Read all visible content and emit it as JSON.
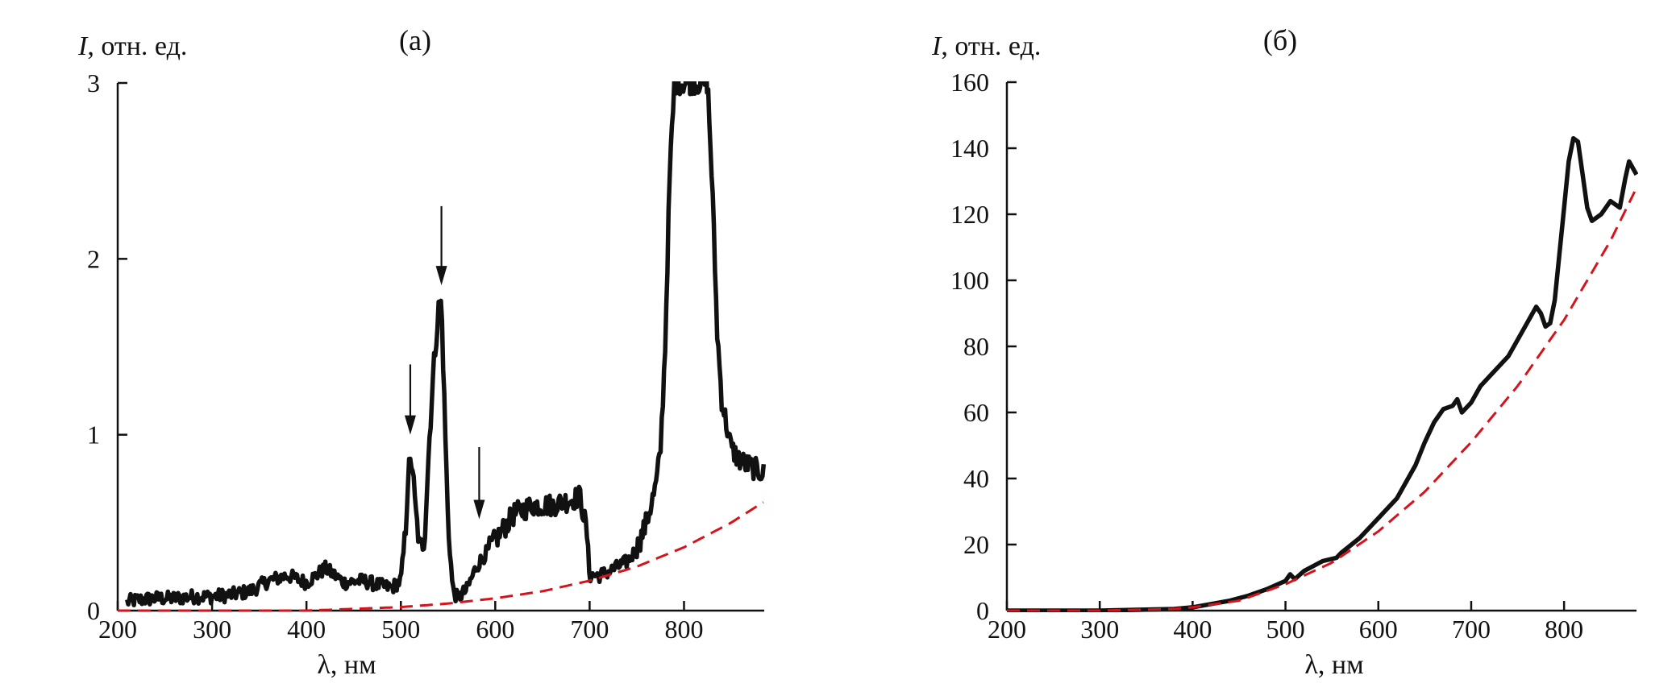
{
  "colors": {
    "measured": "#111111",
    "fit": "#d4141c",
    "axis": "#111111"
  },
  "chart_data": [
    {
      "type": "line",
      "panel_label": "(а)",
      "ylabel_italic": "I",
      "ylabel_rest": ", отн. ед.",
      "xlabel": "λ, нм",
      "xlim": [
        200,
        885
      ],
      "ylim": [
        0,
        3
      ],
      "xticks": [
        200,
        300,
        400,
        500,
        600,
        700,
        800
      ],
      "yticks": [
        0,
        1,
        2,
        3
      ],
      "grid": false,
      "series": [
        {
          "style": "solid-noisy",
          "x": [
            210,
            220,
            240,
            260,
            280,
            300,
            320,
            340,
            350,
            360,
            380,
            400,
            420,
            440,
            460,
            480,
            490,
            500,
            505,
            508,
            512,
            515,
            520,
            525,
            530,
            535,
            540,
            543,
            546,
            550,
            555,
            560,
            570,
            580,
            600,
            620,
            640,
            660,
            680,
            690,
            697,
            700,
            710,
            720,
            740,
            750,
            760,
            770,
            775,
            780,
            785,
            790,
            795,
            800,
            805,
            810,
            815,
            820,
            825,
            830,
            835,
            840,
            850,
            860,
            870,
            885
          ],
          "y": [
            0.05,
            0.06,
            0.07,
            0.07,
            0.08,
            0.08,
            0.09,
            0.11,
            0.14,
            0.17,
            0.2,
            0.16,
            0.24,
            0.16,
            0.17,
            0.14,
            0.13,
            0.17,
            0.45,
            0.8,
            0.85,
            0.6,
            0.35,
            0.4,
            0.95,
            1.4,
            1.72,
            1.75,
            1.2,
            0.5,
            0.12,
            0.07,
            0.12,
            0.25,
            0.4,
            0.55,
            0.6,
            0.6,
            0.63,
            0.65,
            0.45,
            0.2,
            0.2,
            0.22,
            0.28,
            0.35,
            0.5,
            0.7,
            0.9,
            1.5,
            2.5,
            3.0,
            3.0,
            3.0,
            3.0,
            3.0,
            3.0,
            3.0,
            3.0,
            2.4,
            1.6,
            1.2,
            0.92,
            0.85,
            0.82,
            0.78
          ],
          "noise": 0.04
        },
        {
          "style": "dashed",
          "x": [
            200,
            300,
            400,
            450,
            500,
            550,
            600,
            650,
            700,
            750,
            800,
            850,
            885
          ],
          "y": [
            0,
            0,
            0.0,
            0.01,
            0.02,
            0.04,
            0.07,
            0.11,
            0.17,
            0.25,
            0.36,
            0.5,
            0.62
          ]
        }
      ],
      "annotations": [
        {
          "type": "arrow",
          "x": 510,
          "y_from": 1.4,
          "y_to": 1.0
        },
        {
          "type": "arrow",
          "x": 543,
          "y_from": 2.3,
          "y_to": 1.85
        },
        {
          "type": "arrow",
          "x": 583,
          "y_from": 0.93,
          "y_to": 0.52
        }
      ]
    },
    {
      "type": "line",
      "panel_label": "(б)",
      "ylabel_italic": "I",
      "ylabel_rest": ", отн. ед.",
      "xlabel": "λ, нм",
      "xlim": [
        200,
        878
      ],
      "ylim": [
        0,
        160
      ],
      "xticks": [
        200,
        300,
        400,
        500,
        600,
        700,
        800
      ],
      "yticks": [
        0,
        20,
        40,
        60,
        80,
        100,
        120,
        140,
        160
      ],
      "grid": false,
      "series": [
        {
          "style": "solid",
          "x": [
            200,
            300,
            380,
            400,
            420,
            440,
            460,
            480,
            500,
            505,
            510,
            520,
            540,
            555,
            560,
            580,
            600,
            620,
            640,
            650,
            660,
            670,
            680,
            685,
            690,
            700,
            710,
            720,
            740,
            760,
            770,
            775,
            780,
            785,
            790,
            795,
            800,
            805,
            810,
            815,
            820,
            825,
            830,
            840,
            850,
            860,
            866,
            870,
            878
          ],
          "y": [
            0,
            0,
            0.5,
            1,
            2,
            3,
            4.5,
            6.5,
            9,
            11,
            9.5,
            12,
            15,
            16,
            17.5,
            22,
            28,
            34,
            44,
            51,
            57,
            61,
            62,
            64,
            60,
            63,
            68,
            71,
            77,
            87,
            92,
            90,
            86,
            87,
            94,
            108,
            122,
            136,
            143,
            142,
            132,
            122,
            118,
            120,
            124,
            122,
            131,
            136,
            132
          ]
        },
        {
          "style": "dashed",
          "x": [
            200,
            300,
            380,
            400,
            450,
            500,
            550,
            600,
            650,
            700,
            750,
            800,
            850,
            878
          ],
          "y": [
            0,
            0,
            0.5,
            1,
            3,
            8,
            14.5,
            24,
            36,
            51,
            68,
            88,
            112,
            128
          ]
        }
      ],
      "annotations": []
    }
  ]
}
